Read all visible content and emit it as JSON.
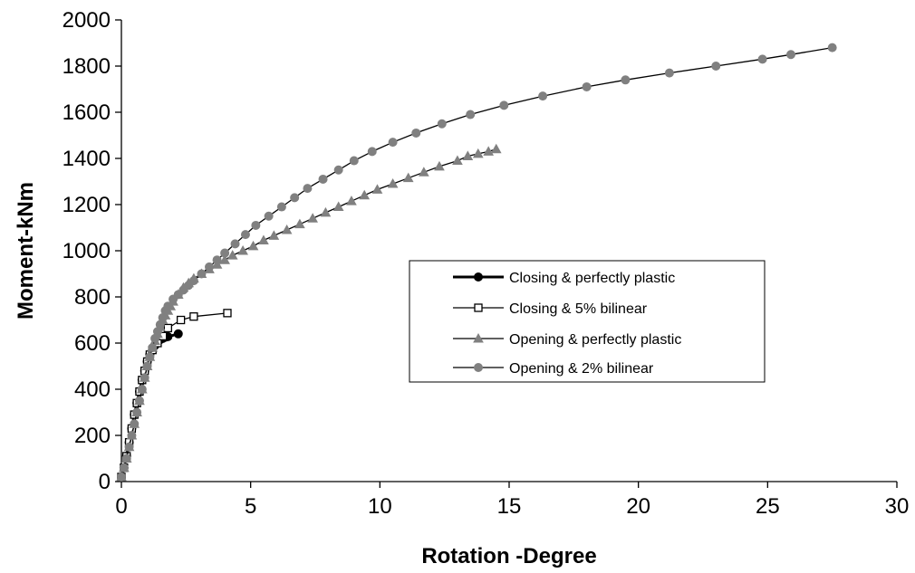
{
  "chart_data": {
    "type": "line",
    "title": "",
    "xlabel": "Rotation -Degree",
    "ylabel": "Moment-kNm",
    "xlim": [
      0,
      30
    ],
    "ylim": [
      0,
      2000
    ],
    "xticks": [
      0,
      5,
      10,
      15,
      20,
      25,
      30
    ],
    "yticks": [
      0,
      200,
      400,
      600,
      800,
      1000,
      1200,
      1400,
      1600,
      1800,
      2000
    ],
    "grid": false,
    "legend_position": "center-right",
    "series": [
      {
        "name": "Closing & perfectly plastic",
        "marker": "filled-circle",
        "color": "#000000",
        "line_width": "thick",
        "x": [
          0,
          0.1,
          0.2,
          0.3,
          0.4,
          0.5,
          0.6,
          0.7,
          0.8,
          0.9,
          1.0,
          1.1,
          1.2,
          1.3,
          1.4,
          1.5,
          1.6,
          1.7,
          1.8,
          2.2
        ],
        "y": [
          20,
          60,
          110,
          170,
          230,
          290,
          340,
          390,
          440,
          480,
          520,
          550,
          570,
          590,
          605,
          615,
          620,
          625,
          628,
          640
        ]
      },
      {
        "name": "Closing & 5% bilinear",
        "marker": "open-square",
        "color": "#000000",
        "line_width": "thin",
        "x": [
          0,
          0.1,
          0.2,
          0.3,
          0.4,
          0.5,
          0.6,
          0.7,
          0.8,
          0.9,
          1.0,
          1.1,
          1.2,
          1.4,
          1.6,
          1.8,
          2.3,
          2.8,
          4.1
        ],
        "y": [
          20,
          60,
          110,
          170,
          230,
          290,
          340,
          390,
          440,
          480,
          520,
          550,
          570,
          600,
          630,
          665,
          700,
          715,
          730
        ]
      },
      {
        "name": "Opening & perfectly plastic",
        "marker": "filled-triangle",
        "color": "#808080",
        "line_width": "thin",
        "x": [
          0,
          0.1,
          0.2,
          0.3,
          0.4,
          0.5,
          0.6,
          0.7,
          0.8,
          0.9,
          1.0,
          1.1,
          1.2,
          1.3,
          1.4,
          1.5,
          1.6,
          1.7,
          1.8,
          1.9,
          2.0,
          2.2,
          2.4,
          2.6,
          2.8,
          3.1,
          3.4,
          3.7,
          4.0,
          4.3,
          4.7,
          5.1,
          5.5,
          5.9,
          6.4,
          6.9,
          7.4,
          7.9,
          8.4,
          8.9,
          9.4,
          9.9,
          10.5,
          11.1,
          11.7,
          12.3,
          13.0,
          13.4,
          13.8,
          14.2,
          14.5
        ],
        "y": [
          20,
          60,
          100,
          150,
          200,
          250,
          300,
          350,
          400,
          450,
          500,
          540,
          580,
          610,
          640,
          670,
          700,
          720,
          740,
          760,
          780,
          810,
          840,
          860,
          880,
          900,
          920,
          940,
          960,
          980,
          1000,
          1020,
          1045,
          1065,
          1090,
          1115,
          1140,
          1165,
          1190,
          1215,
          1240,
          1265,
          1290,
          1315,
          1340,
          1365,
          1390,
          1410,
          1420,
          1430,
          1440
        ]
      },
      {
        "name": "Opening & 2% bilinear",
        "marker": "filled-circle",
        "color": "#808080",
        "line_width": "thin",
        "x": [
          0,
          0.1,
          0.2,
          0.3,
          0.4,
          0.5,
          0.6,
          0.7,
          0.8,
          0.9,
          1.0,
          1.1,
          1.2,
          1.3,
          1.4,
          1.5,
          1.6,
          1.7,
          1.8,
          2.0,
          2.2,
          2.4,
          2.6,
          2.8,
          3.1,
          3.4,
          3.7,
          4.0,
          4.4,
          4.8,
          5.2,
          5.7,
          6.2,
          6.7,
          7.2,
          7.8,
          8.4,
          9.0,
          9.7,
          10.5,
          11.4,
          12.4,
          13.5,
          14.8,
          16.3,
          18.0,
          19.5,
          21.2,
          23.0,
          24.8,
          25.9,
          27.5
        ],
        "y": [
          20,
          60,
          100,
          150,
          200,
          250,
          300,
          350,
          400,
          450,
          500,
          540,
          580,
          620,
          650,
          680,
          710,
          740,
          760,
          790,
          810,
          830,
          850,
          870,
          900,
          930,
          960,
          990,
          1030,
          1070,
          1110,
          1150,
          1190,
          1230,
          1270,
          1310,
          1350,
          1390,
          1430,
          1470,
          1510,
          1550,
          1590,
          1630,
          1670,
          1710,
          1740,
          1770,
          1800,
          1830,
          1850,
          1880
        ]
      }
    ]
  }
}
